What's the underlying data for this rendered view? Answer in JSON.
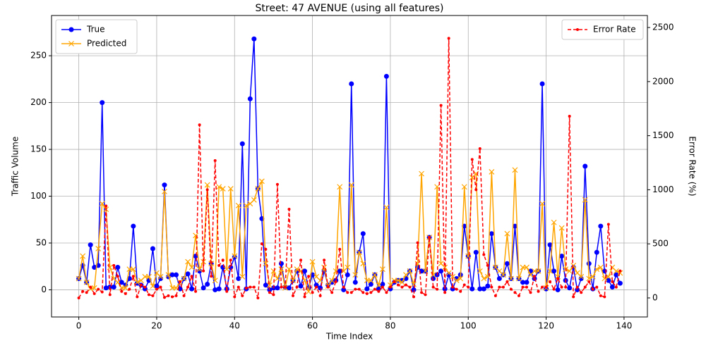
{
  "chart_data": {
    "type": "line",
    "title": "Street: 47 AVENUE (using all features)",
    "xlabel": "Time Index",
    "ylabel": "Traffic Volume",
    "y2label": "Error Rate (%)",
    "x": [
      0,
      1,
      2,
      3,
      4,
      5,
      6,
      7,
      8,
      9,
      10,
      11,
      12,
      13,
      14,
      15,
      16,
      17,
      18,
      19,
      20,
      21,
      22,
      23,
      24,
      25,
      26,
      27,
      28,
      29,
      30,
      31,
      32,
      33,
      34,
      35,
      36,
      37,
      38,
      39,
      40,
      41,
      42,
      43,
      44,
      45,
      46,
      47,
      48,
      49,
      50,
      51,
      52,
      53,
      54,
      55,
      56,
      57,
      58,
      59,
      60,
      61,
      62,
      63,
      64,
      65,
      66,
      67,
      68,
      69,
      70,
      71,
      72,
      73,
      74,
      75,
      76,
      77,
      78,
      79,
      80,
      81,
      82,
      83,
      84,
      85,
      86,
      87,
      88,
      89,
      90,
      91,
      92,
      93,
      94,
      95,
      96,
      97,
      98,
      99,
      100,
      101,
      102,
      103,
      104,
      105,
      106,
      107,
      108,
      109,
      110,
      111,
      112,
      113,
      114,
      115,
      116,
      117,
      118,
      119,
      120,
      121,
      122,
      123,
      124,
      125,
      126,
      127,
      128,
      129,
      130,
      131,
      132,
      133,
      134,
      135,
      136,
      137,
      138,
      139
    ],
    "series": [
      {
        "name": "True",
        "color": "#0000ff",
        "marker": "o",
        "axis": "y",
        "values": [
          12,
          26,
          8,
          48,
          24,
          26,
          200,
          2,
          3,
          3,
          24,
          8,
          5,
          12,
          68,
          7,
          5,
          1,
          10,
          44,
          4,
          12,
          112,
          14,
          16,
          16,
          1,
          12,
          17,
          1,
          36,
          20,
          2,
          6,
          28,
          0,
          1,
          24,
          1,
          24,
          35,
          12,
          156,
          1,
          204,
          268,
          108,
          76,
          5,
          0,
          2,
          2,
          28,
          3,
          2,
          10,
          20,
          4,
          20,
          2,
          16,
          5,
          2,
          20,
          5,
          8,
          10,
          20,
          0,
          16,
          220,
          8,
          40,
          60,
          1,
          6,
          16,
          1,
          6,
          228,
          1,
          8,
          10,
          10,
          12,
          20,
          0,
          24,
          20,
          20,
          56,
          12,
          16,
          20,
          1,
          16,
          1,
          12,
          16,
          68,
          36,
          1,
          40,
          1,
          1,
          4,
          60,
          24,
          12,
          16,
          28,
          12,
          68,
          12,
          8,
          8,
          20,
          12,
          20,
          220,
          1,
          48,
          20,
          0,
          36,
          10,
          2,
          24,
          0,
          12,
          132,
          28,
          1,
          40,
          68,
          20,
          10,
          3,
          16,
          7
        ]
      },
      {
        "name": "Predicted",
        "color": "#ffa500",
        "marker": "x",
        "axis": "y",
        "values": [
          12,
          36,
          8,
          1,
          2,
          44,
          92,
          86,
          24,
          12,
          8,
          2,
          2,
          22,
          22,
          8,
          10,
          14,
          14,
          4,
          18,
          14,
          105,
          16,
          2,
          2,
          8,
          12,
          30,
          24,
          58,
          22,
          30,
          112,
          28,
          10,
          110,
          108,
          22,
          108,
          36,
          90,
          14,
          90,
          92,
          96,
          108,
          116,
          28,
          5,
          20,
          12,
          22,
          2,
          22,
          10,
          22,
          20,
          10,
          -2,
          30,
          14,
          10,
          24,
          4,
          10,
          20,
          110,
          20,
          24,
          112,
          16,
          40,
          28,
          10,
          10,
          16,
          5,
          22,
          88,
          5,
          10,
          10,
          8,
          16,
          20,
          6,
          28,
          124,
          20,
          56,
          16,
          110,
          28,
          24,
          18,
          14,
          10,
          12,
          110,
          36,
          120,
          124,
          20,
          12,
          14,
          126,
          24,
          20,
          16,
          60,
          12,
          128,
          12,
          24,
          24,
          16,
          20,
          20,
          92,
          2,
          20,
          72,
          14,
          66,
          22,
          20,
          26,
          18,
          14,
          96,
          12,
          14,
          22,
          24,
          12,
          14,
          24,
          20,
          18
        ]
      },
      {
        "name": "Error Rate",
        "color": "#ff0000",
        "marker": ".",
        "axis": "y2",
        "dashed": true,
        "values": [
          0,
          60,
          50,
          100,
          40,
          80,
          55,
          850,
          30,
          300,
          200,
          60,
          40,
          80,
          200,
          10,
          120,
          100,
          30,
          20,
          80,
          100,
          5,
          20,
          10,
          20,
          150,
          20,
          100,
          200,
          60,
          1600,
          250,
          1000,
          200,
          1270,
          300,
          350,
          60,
          350,
          10,
          100,
          20,
          90,
          100,
          100,
          0,
          500,
          450,
          50,
          30,
          1050,
          100,
          100,
          820,
          20,
          100,
          350,
          10,
          200,
          50,
          100,
          20,
          350,
          100,
          50,
          150,
          450,
          100,
          50,
          50,
          80,
          80,
          50,
          40,
          50,
          80,
          60,
          100,
          50,
          100,
          150,
          120,
          100,
          120,
          100,
          10,
          510,
          50,
          30,
          560,
          100,
          80,
          1780,
          50,
          2400,
          100,
          80,
          60,
          120,
          100,
          1280,
          1000,
          1380,
          400,
          300,
          100,
          20,
          100,
          100,
          150,
          80,
          50,
          20,
          100,
          100,
          50,
          200,
          60,
          100,
          100,
          150,
          80,
          180,
          100,
          100,
          1680,
          10,
          100,
          50,
          100,
          150,
          80,
          100,
          20,
          10,
          680,
          150,
          100,
          250
        ]
      }
    ],
    "xlim": [
      -7,
      146
    ],
    "xticks": [
      0,
      20,
      40,
      60,
      80,
      100,
      120,
      140
    ],
    "ylim": [
      -29,
      293
    ],
    "yticks": [
      0,
      50,
      100,
      150,
      200,
      250
    ],
    "y2lim": [
      -176,
      2611
    ],
    "y2ticks": [
      0,
      500,
      1000,
      1500,
      2000,
      2500
    ],
    "grid": true,
    "legend": "upper left",
    "legend2": "upper right"
  }
}
